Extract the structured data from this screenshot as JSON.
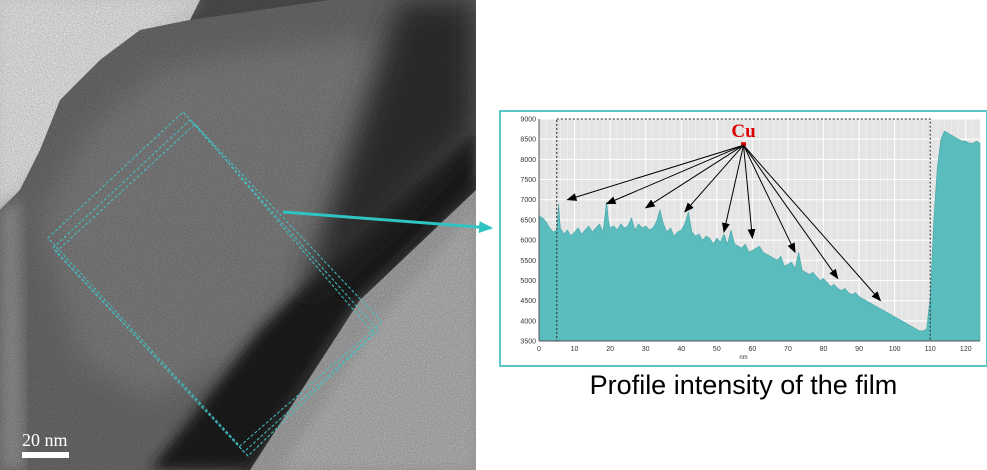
{
  "micrograph": {
    "scale_bar_label": "20 nm"
  },
  "caption": "Profile intensity of the film",
  "chart_data": {
    "type": "area",
    "title": "",
    "xlabel": "nm",
    "ylabel": "",
    "xlim": [
      0,
      124
    ],
    "ylim": [
      3500,
      9000
    ],
    "x_ticks": [
      0,
      10,
      20,
      30,
      40,
      50,
      60,
      70,
      80,
      90,
      100,
      110,
      120
    ],
    "y_ticks": [
      3500,
      4000,
      4500,
      5000,
      5500,
      6000,
      6500,
      7000,
      7500,
      8000,
      8500,
      9000
    ],
    "grid": true,
    "fill_color": "#5bbcbd",
    "plot_bg": "#e4e4e4",
    "annotation": {
      "label": "Cu",
      "color": "#dd0000",
      "x": 57.5,
      "y": 8400
    },
    "arrow_targets": [
      [
        8,
        7000
      ],
      [
        19,
        6900
      ],
      [
        30,
        6800
      ],
      [
        41,
        6700
      ],
      [
        52,
        6200
      ],
      [
        60,
        6050
      ],
      [
        72,
        5700
      ],
      [
        84,
        5050
      ],
      [
        96,
        4500
      ]
    ],
    "selection": [
      5,
      110
    ],
    "series": [
      {
        "x": [
          0,
          1,
          2,
          3,
          4,
          5,
          5.5,
          6,
          7,
          8,
          9,
          10,
          11,
          12,
          13,
          14,
          15,
          16,
          17,
          18,
          19,
          19.5,
          20,
          21,
          22,
          23,
          24,
          25,
          26,
          27,
          28,
          29,
          30,
          31,
          32,
          33,
          34,
          35,
          36,
          37,
          38,
          39,
          40,
          41,
          42,
          43,
          44,
          45,
          46,
          47,
          48,
          49,
          50,
          51,
          52,
          53,
          54,
          55,
          56,
          57,
          58,
          59,
          60,
          61,
          62,
          63,
          64,
          65,
          66,
          67,
          68,
          69,
          70,
          71,
          72,
          73,
          74,
          75,
          76,
          77,
          78,
          79,
          80,
          81,
          82,
          83,
          84,
          85,
          86,
          87,
          88,
          89,
          90,
          91,
          92,
          93,
          94,
          95,
          96,
          97,
          98,
          99,
          100,
          101,
          102,
          103,
          104,
          105,
          106,
          107,
          108,
          109,
          110,
          111,
          112,
          113,
          114,
          115,
          116,
          117,
          118,
          119,
          120,
          121,
          122,
          123,
          124
        ],
        "y": [
          6600,
          6550,
          6450,
          6300,
          6200,
          6250,
          6900,
          6300,
          6150,
          6250,
          6100,
          6200,
          6300,
          6150,
          6250,
          6350,
          6200,
          6300,
          6400,
          6200,
          6950,
          6500,
          6300,
          6350,
          6250,
          6400,
          6300,
          6350,
          6550,
          6250,
          6400,
          6300,
          6350,
          6250,
          6300,
          6450,
          6750,
          6400,
          6200,
          6300,
          6100,
          6200,
          6250,
          6400,
          6700,
          6200,
          6100,
          6150,
          6000,
          6100,
          6050,
          5900,
          6050,
          5950,
          6150,
          5900,
          6250,
          5900,
          5850,
          5800,
          5900,
          5700,
          5750,
          5800,
          5850,
          5700,
          5650,
          5600,
          5550,
          5500,
          5600,
          5350,
          5400,
          5450,
          5300,
          5700,
          5250,
          5200,
          5150,
          5200,
          5100,
          5000,
          5050,
          4950,
          4850,
          4900,
          4800,
          4750,
          4800,
          4700,
          4650,
          4700,
          4600,
          4550,
          4500,
          4450,
          4400,
          4350,
          4300,
          4250,
          4200,
          4150,
          4100,
          4050,
          4000,
          3950,
          3900,
          3850,
          3800,
          3750,
          3750,
          3800,
          4600,
          6500,
          7800,
          8500,
          8700,
          8650,
          8600,
          8550,
          8500,
          8450,
          8450,
          8400,
          8400,
          8450,
          8400
        ]
      }
    ]
  }
}
